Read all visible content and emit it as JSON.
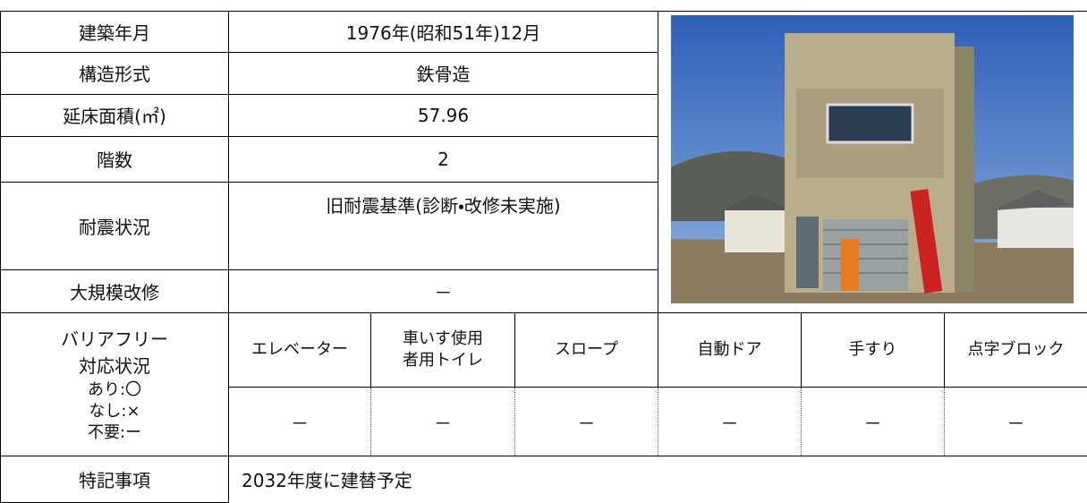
{
  "rows": [
    {
      "label": "建築年月",
      "value": "1976年(昭和51年)12月"
    },
    {
      "label": "構造形式",
      "value": "鉄骨造"
    },
    {
      "label": "延床面積(㎡)",
      "value": "57.96"
    },
    {
      "label": "階数",
      "value": "2"
    },
    {
      "label": "耐震状況",
      "value": "旧耐震基準(診断・改修未実施)"
    },
    {
      "label": "大規模改修",
      "value": "－"
    }
  ],
  "barrier_free": {
    "label_lines": [
      "バリアフリー",
      "対応状況"
    ],
    "legend_lines": [
      "あり:〇",
      "なし:×",
      "不要:ー"
    ],
    "items": [
      "エレベーター",
      "車いす使用者用トイレ",
      "スロープ",
      "自動ドア",
      "手すり",
      "点字ブロック"
    ],
    "statuses": [
      "－",
      "－",
      "－",
      "－",
      "－",
      "－"
    ]
  },
  "notes": {
    "label": "特記事項",
    "value": "2032年度に建替予定"
  }
}
